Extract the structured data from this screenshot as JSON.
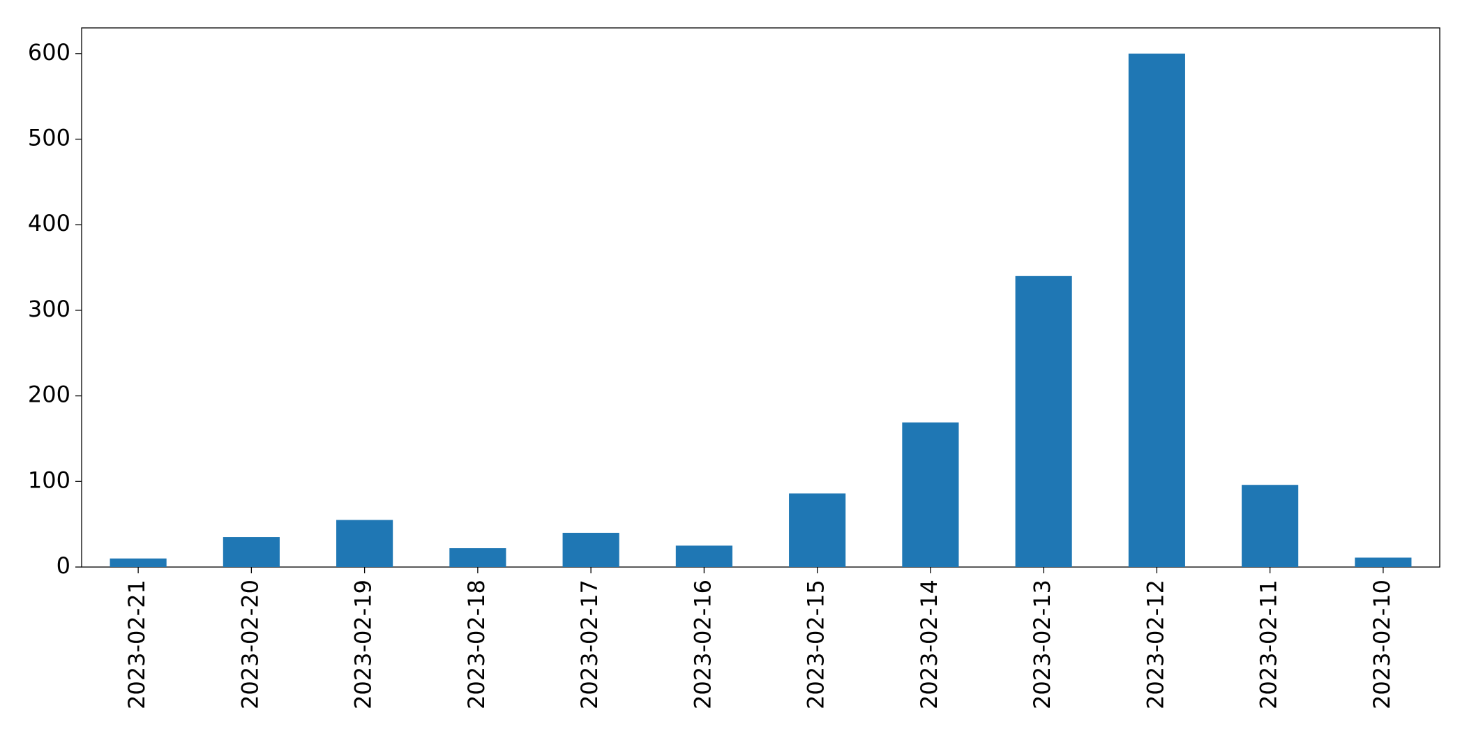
{
  "chart_data": {
    "type": "bar",
    "categories": [
      "2023-02-21",
      "2023-02-20",
      "2023-02-19",
      "2023-02-18",
      "2023-02-17",
      "2023-02-16",
      "2023-02-15",
      "2023-02-14",
      "2023-02-13",
      "2023-02-12",
      "2023-02-11",
      "2023-02-10"
    ],
    "values": [
      10,
      35,
      55,
      22,
      40,
      25,
      86,
      169,
      340,
      600,
      96,
      11
    ],
    "color": "#1f77b4",
    "ylim": [
      0,
      630
    ],
    "yticks": [
      0,
      100,
      200,
      300,
      400,
      500,
      600
    ],
    "grid": false
  }
}
